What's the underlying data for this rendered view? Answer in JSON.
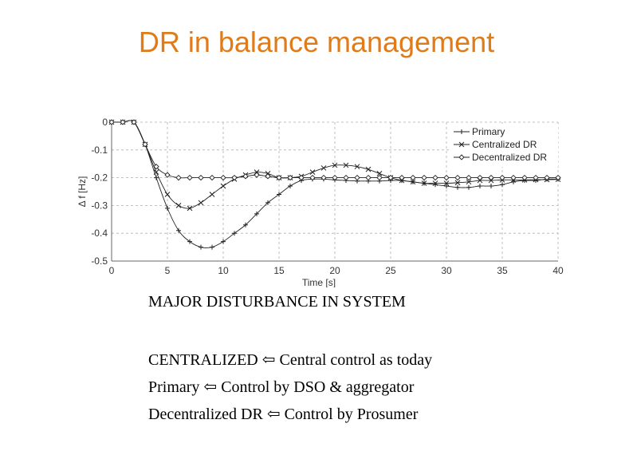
{
  "slide": {
    "title": "DR in balance management",
    "caption": "MAJOR DISTURBANCE IN SYSTEM",
    "lines": [
      "CENTRALIZED ⇦ Central control as today",
      "Primary ⇦ Control by DSO & aggregator",
      "Decentralized DR ⇦ Control by Prosumer"
    ]
  },
  "chart_data": {
    "type": "line",
    "title": "",
    "xlabel": "Time [s]",
    "ylabel": "Δ f [Hz]",
    "xlim": [
      0,
      40
    ],
    "ylim": [
      -0.5,
      0
    ],
    "xticks": [
      0,
      5,
      10,
      15,
      20,
      25,
      30,
      35,
      40
    ],
    "yticks": [
      0,
      -0.1,
      -0.2,
      -0.3,
      -0.4,
      -0.5
    ],
    "ytick_labels": [
      "0",
      "-0.1",
      "-0.2",
      "-0.3",
      "-0.4",
      "-0.5"
    ],
    "grid": true,
    "legend": "top-right",
    "series": [
      {
        "name": "Primary",
        "marker": "plus",
        "x": [
          0,
          1,
          2,
          3,
          4,
          5,
          6,
          7,
          8,
          9,
          10,
          11,
          12,
          13,
          14,
          15,
          16,
          17,
          18,
          19,
          20,
          21,
          22,
          23,
          24,
          25,
          26,
          27,
          28,
          29,
          30,
          31,
          32,
          33,
          34,
          35,
          36,
          37,
          38,
          39,
          40
        ],
        "y": [
          0,
          0,
          0,
          -0.08,
          -0.2,
          -0.31,
          -0.39,
          -0.43,
          -0.45,
          -0.45,
          -0.43,
          -0.4,
          -0.37,
          -0.33,
          -0.29,
          -0.26,
          -0.23,
          -0.21,
          -0.205,
          -0.205,
          -0.208,
          -0.21,
          -0.212,
          -0.212,
          -0.212,
          -0.21,
          -0.21,
          -0.215,
          -0.22,
          -0.225,
          -0.23,
          -0.235,
          -0.235,
          -0.23,
          -0.23,
          -0.225,
          -0.215,
          -0.21,
          -0.21,
          -0.205,
          -0.205
        ]
      },
      {
        "name": "Centralized DR",
        "marker": "x",
        "x": [
          0,
          1,
          2,
          3,
          4,
          5,
          6,
          7,
          8,
          9,
          10,
          11,
          12,
          13,
          14,
          15,
          16,
          17,
          18,
          19,
          20,
          21,
          22,
          23,
          24,
          25,
          26,
          27,
          28,
          29,
          30,
          31,
          32,
          33,
          34,
          35,
          36,
          37,
          38,
          39,
          40
        ],
        "y": [
          0,
          0,
          0,
          -0.08,
          -0.18,
          -0.26,
          -0.3,
          -0.31,
          -0.29,
          -0.26,
          -0.23,
          -0.205,
          -0.19,
          -0.18,
          -0.185,
          -0.2,
          -0.2,
          -0.195,
          -0.18,
          -0.165,
          -0.155,
          -0.155,
          -0.16,
          -0.17,
          -0.185,
          -0.2,
          -0.21,
          -0.215,
          -0.22,
          -0.22,
          -0.22,
          -0.218,
          -0.215,
          -0.21,
          -0.21,
          -0.208,
          -0.208,
          -0.208,
          -0.207,
          -0.207,
          -0.206
        ]
      },
      {
        "name": "Decentralized DR",
        "marker": "diamond",
        "x": [
          0,
          1,
          2,
          3,
          4,
          5,
          6,
          7,
          8,
          9,
          10,
          11,
          12,
          13,
          14,
          15,
          16,
          17,
          18,
          19,
          20,
          21,
          22,
          23,
          24,
          25,
          26,
          27,
          28,
          29,
          30,
          31,
          32,
          33,
          34,
          35,
          36,
          37,
          38,
          39,
          40
        ],
        "y": [
          0,
          0,
          0,
          -0.08,
          -0.16,
          -0.19,
          -0.2,
          -0.2,
          -0.2,
          -0.2,
          -0.2,
          -0.2,
          -0.195,
          -0.19,
          -0.195,
          -0.2,
          -0.2,
          -0.2,
          -0.2,
          -0.2,
          -0.2,
          -0.2,
          -0.2,
          -0.2,
          -0.2,
          -0.2,
          -0.2,
          -0.2,
          -0.2,
          -0.2,
          -0.2,
          -0.2,
          -0.2,
          -0.2,
          -0.2,
          -0.2,
          -0.2,
          -0.2,
          -0.2,
          -0.2,
          -0.2
        ]
      }
    ]
  }
}
